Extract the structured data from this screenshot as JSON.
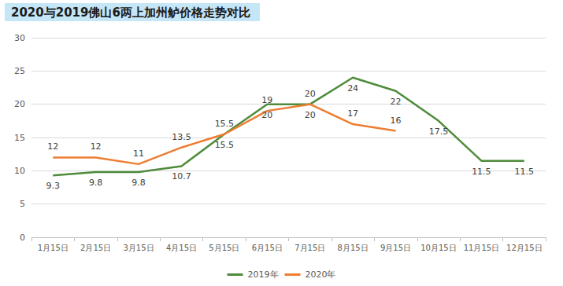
{
  "chart_data": {
    "type": "line",
    "title": "2020与2019佛山6两上加州鲈价格走势对比",
    "categories": [
      "1月15日",
      "2月15日",
      "3月15日",
      "4月15日",
      "5月15日",
      "6月15日",
      "7月15日",
      "8月15日",
      "9月15日",
      "10月15日",
      "11月15日",
      "12月15日"
    ],
    "series": [
      {
        "name": "2019年",
        "color": "#4e8b3a",
        "values": [
          9.3,
          9.8,
          9.8,
          10.7,
          15.5,
          20,
          20,
          24,
          22,
          17.5,
          11.5,
          11.5
        ]
      },
      {
        "name": "2020年",
        "color": "#ed7d31",
        "values": [
          12,
          12,
          11,
          13.5,
          15.5,
          19,
          20,
          17,
          16,
          null,
          null,
          null
        ]
      }
    ],
    "ylim": [
      0,
      30
    ],
    "yticks": [
      0,
      5,
      10,
      15,
      20,
      25,
      30
    ],
    "grid": true,
    "legend": "bottom",
    "data_labels": true
  }
}
